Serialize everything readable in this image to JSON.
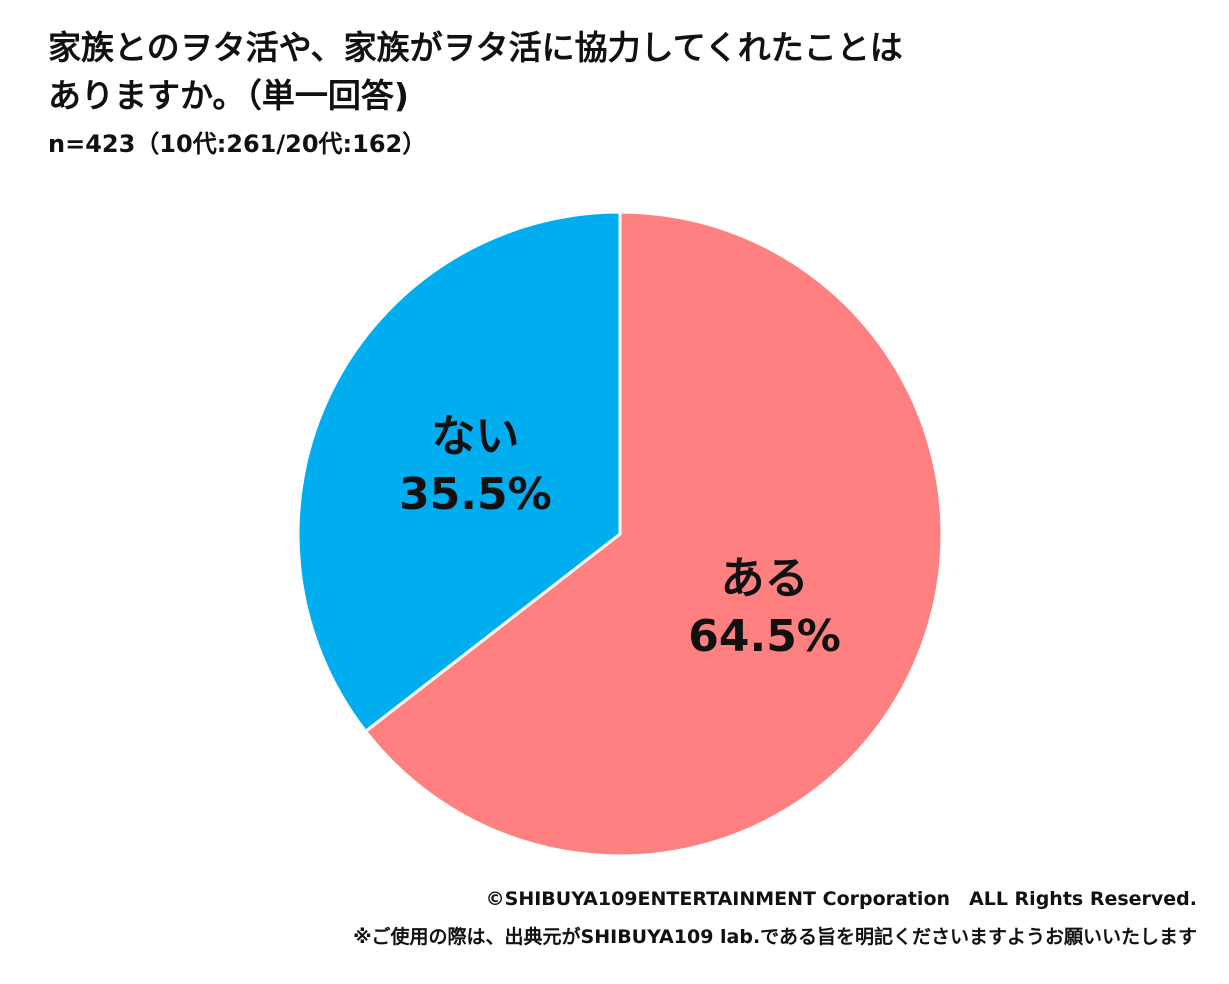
{
  "header": {
    "title_line1": "家族とのヲタ活や、家族がヲタ活に協力してくれたことは",
    "title_line2": "ありますか。（単一回答)",
    "sample": "n=423（10代:261/20代:162）"
  },
  "chart_data": {
    "type": "pie",
    "title": "家族とのヲタ活や、家族がヲタ活に協力してくれたことはありますか。（単一回答)",
    "slices": [
      {
        "label": "ある",
        "value": 64.5,
        "display": "64.5%",
        "color": "#FF8080"
      },
      {
        "label": "ない",
        "value": 35.5,
        "display": "35.5%",
        "color": "#00AEEF"
      }
    ],
    "start": "12 o'clock",
    "direction": "clockwise"
  },
  "footer": {
    "copyright": "©SHIBUYA109ENTERTAINMENT Corporation　ALL Rights Reserved.",
    "note": "※ご使用の際は、出典元がSHIBUYA109 lab.である旨を明記くださいますようお願いいたします"
  }
}
